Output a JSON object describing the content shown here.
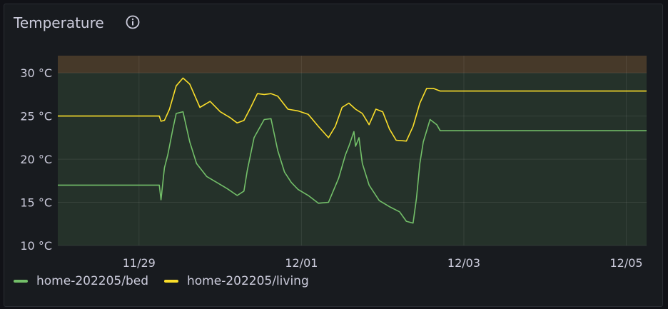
{
  "panel": {
    "title": "Temperature"
  },
  "chart_data": {
    "type": "line",
    "title": "Temperature",
    "unit": "°C",
    "ylim": [
      10,
      32
    ],
    "xlim": [
      "11/28",
      "12/05"
    ],
    "yticks": [
      "30 °C",
      "25 °C",
      "20 °C",
      "15 °C",
      "10 °C"
    ],
    "xticks": [
      "11/29",
      "12/01",
      "12/03",
      "12/05"
    ],
    "grid": true,
    "thresholds": {
      "warning_above": 30,
      "colors": {
        "normal": "#73bf69",
        "warning": "#ffb357"
      }
    },
    "legend_position": "bottom-left",
    "series": [
      {
        "name": "home-202205/bed",
        "color": "#73bf69",
        "x": [
          "11/28 00:00",
          "11/29 06:00",
          "11/29 06:30",
          "11/29 07:30",
          "11/29 08:30",
          "11/29 10:00",
          "11/29 11:00",
          "11/29 13:00",
          "11/29 15:00",
          "11/29 17:00",
          "11/29 20:00",
          "11/29 23:00",
          "11/30 02:00",
          "11/30 05:00",
          "11/30 07:00",
          "11/30 08:00",
          "11/30 10:00",
          "11/30 13:00",
          "11/30 15:00",
          "11/30 17:00",
          "11/30 19:00",
          "11/30 21:00",
          "11/30 23:00",
          "12/01 02:00",
          "12/01 05:00",
          "12/01 08:00",
          "12/01 11:00",
          "12/01 13:00",
          "12/01 14:00",
          "12/01 15:30",
          "12/01 16:00",
          "12/01 17:00",
          "12/01 18:00",
          "12/01 20:00",
          "12/01 23:00",
          "12/02 02:00",
          "12/02 05:00",
          "12/02 07:00",
          "12/02 09:00",
          "12/02 10:00",
          "12/02 11:00",
          "12/02 12:00",
          "12/02 14:00",
          "12/02 16:00",
          "12/02 17:00",
          "12/05 06:00"
        ],
        "y": [
          17,
          17,
          15.3,
          19,
          20.5,
          23.5,
          25.3,
          25.5,
          22,
          19.5,
          18,
          17.3,
          16.6,
          15.8,
          16.3,
          18.7,
          22.5,
          24.6,
          24.7,
          21,
          18.5,
          17.3,
          16.5,
          15.8,
          14.9,
          15,
          17.8,
          20.5,
          21.5,
          23.2,
          21.5,
          22.5,
          19.5,
          17,
          15.2,
          14.5,
          13.9,
          12.8,
          12.6,
          15.5,
          19.5,
          22,
          24.6,
          24,
          23.3,
          23.3
        ]
      },
      {
        "name": "home-202205/living",
        "color": "#fade2a",
        "x": [
          "11/28 00:00",
          "11/29 06:00",
          "11/29 06:30",
          "11/29 07:30",
          "11/29 09:00",
          "11/29 11:00",
          "11/29 13:00",
          "11/29 15:00",
          "11/29 18:00",
          "11/29 21:00",
          "11/30 00:00",
          "11/30 03:00",
          "11/30 05:00",
          "11/30 07:00",
          "11/30 09:00",
          "11/30 11:00",
          "11/30 13:00",
          "11/30 15:00",
          "11/30 17:00",
          "11/30 20:00",
          "11/30 23:00",
          "12/01 02:00",
          "12/01 05:00",
          "12/01 08:00",
          "12/01 10:00",
          "12/01 12:00",
          "12/01 14:00",
          "12/01 16:00",
          "12/01 18:00",
          "12/01 20:00",
          "12/01 22:00",
          "12/02 00:00",
          "12/02 02:00",
          "12/02 04:00",
          "12/02 07:00",
          "12/02 09:00",
          "12/02 11:00",
          "12/02 13:00",
          "12/02 15:00",
          "12/02 17:00",
          "12/05 06:00"
        ],
        "y": [
          25,
          25,
          24.4,
          24.5,
          25.8,
          28.5,
          29.4,
          28.7,
          26,
          26.7,
          25.5,
          24.8,
          24.2,
          24.5,
          26,
          27.6,
          27.5,
          27.6,
          27.3,
          25.8,
          25.6,
          25.2,
          23.8,
          22.5,
          23.8,
          26,
          26.5,
          25.8,
          25.3,
          24,
          25.8,
          25.5,
          23.5,
          22.2,
          22.1,
          23.8,
          26.5,
          28.2,
          28.2,
          27.9,
          27.9
        ]
      }
    ]
  }
}
